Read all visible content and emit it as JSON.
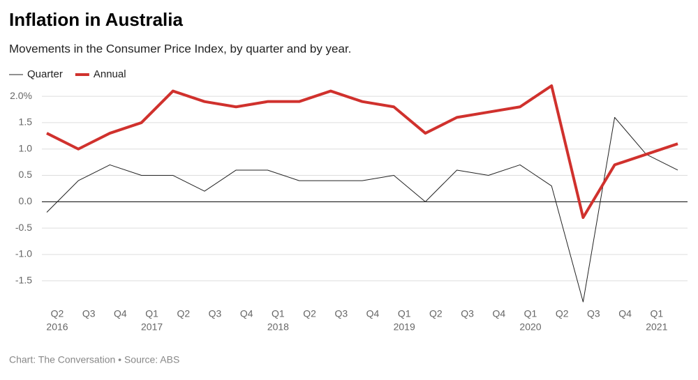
{
  "chart_data": {
    "type": "line",
    "title": "Inflation in Australia",
    "subtitle": "Movements in the Consumer Price Index, by quarter and by year.",
    "source": "Chart: The Conversation • Source: ABS",
    "categories": [
      "Q2",
      "Q3",
      "Q4",
      "Q1",
      "Q2",
      "Q3",
      "Q4",
      "Q1",
      "Q2",
      "Q3",
      "Q4",
      "Q1",
      "Q2",
      "Q3",
      "Q4",
      "Q1",
      "Q2",
      "Q3",
      "Q4",
      "Q1",
      null
    ],
    "years": [
      "2016",
      null,
      null,
      "2017",
      null,
      null,
      null,
      "2018",
      null,
      null,
      null,
      "2019",
      null,
      null,
      null,
      "2020",
      null,
      null,
      null,
      "2021",
      null
    ],
    "series": [
      {
        "name": "Quarter",
        "color": "#222222",
        "width": 1,
        "values": [
          -0.2,
          0.4,
          0.7,
          0.5,
          0.5,
          0.2,
          0.6,
          0.6,
          0.4,
          0.4,
          0.4,
          0.5,
          0.0,
          0.6,
          0.5,
          0.7,
          0.3,
          -1.9,
          1.6,
          0.9,
          0.6
        ]
      },
      {
        "name": "Annual",
        "color": "#d0312d",
        "width": 4,
        "values": [
          1.3,
          1.0,
          1.3,
          1.5,
          2.1,
          1.9,
          1.8,
          1.9,
          1.9,
          2.1,
          1.9,
          1.8,
          1.3,
          1.6,
          1.7,
          1.8,
          2.2,
          -0.3,
          0.7,
          0.9,
          1.1
        ]
      }
    ],
    "ylim": [
      -1.9,
      2.2
    ],
    "yticks": [
      {
        "value": 2,
        "label": "2.0%"
      },
      1.5,
      {
        "value": 1,
        "label": "1.0"
      },
      0.5,
      {
        "value": 0,
        "label": "0.0"
      },
      -0.5,
      {
        "value": -1,
        "label": "-1.0"
      },
      -1.5
    ],
    "grid": true
  }
}
